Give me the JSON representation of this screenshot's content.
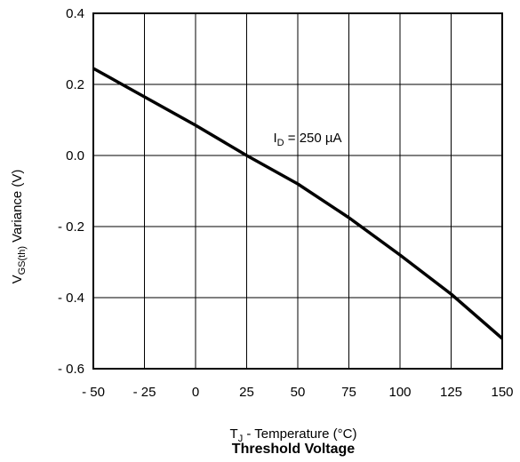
{
  "chart_data": {
    "type": "line",
    "title": "Threshold Voltage",
    "xlabel": {
      "main": "T",
      "sub": "J",
      "rest": " - Temperature (°C)"
    },
    "ylabel": {
      "main": "V",
      "sub": "GS(th)",
      "rest": "  Variance (V)"
    },
    "xlim": [
      -50,
      150
    ],
    "ylim": [
      -0.6,
      0.4
    ],
    "xticks": [
      -50,
      -25,
      0,
      25,
      50,
      75,
      100,
      125,
      150
    ],
    "xtick_labels": [
      "- 50",
      "- 25",
      "0",
      "25",
      "50",
      "75",
      "100",
      "125",
      "150"
    ],
    "yticks": [
      0.4,
      0.2,
      0.0,
      -0.2,
      -0.4,
      -0.6
    ],
    "ytick_labels": [
      "0.4",
      "0.2",
      "0.0",
      "- 0.2",
      "- 0.4",
      "- 0.6"
    ],
    "grid": true,
    "annotation": {
      "main": "I",
      "sub": "D",
      "rest": " = 250 µA",
      "x": 25,
      "y": 0.05
    },
    "series": [
      {
        "x": [
          -50,
          -25,
          0,
          25,
          50,
          75,
          100,
          125,
          150
        ],
        "y": [
          0.245,
          0.165,
          0.085,
          0.0,
          -0.08,
          -0.175,
          -0.28,
          -0.39,
          -0.515
        ]
      }
    ]
  }
}
